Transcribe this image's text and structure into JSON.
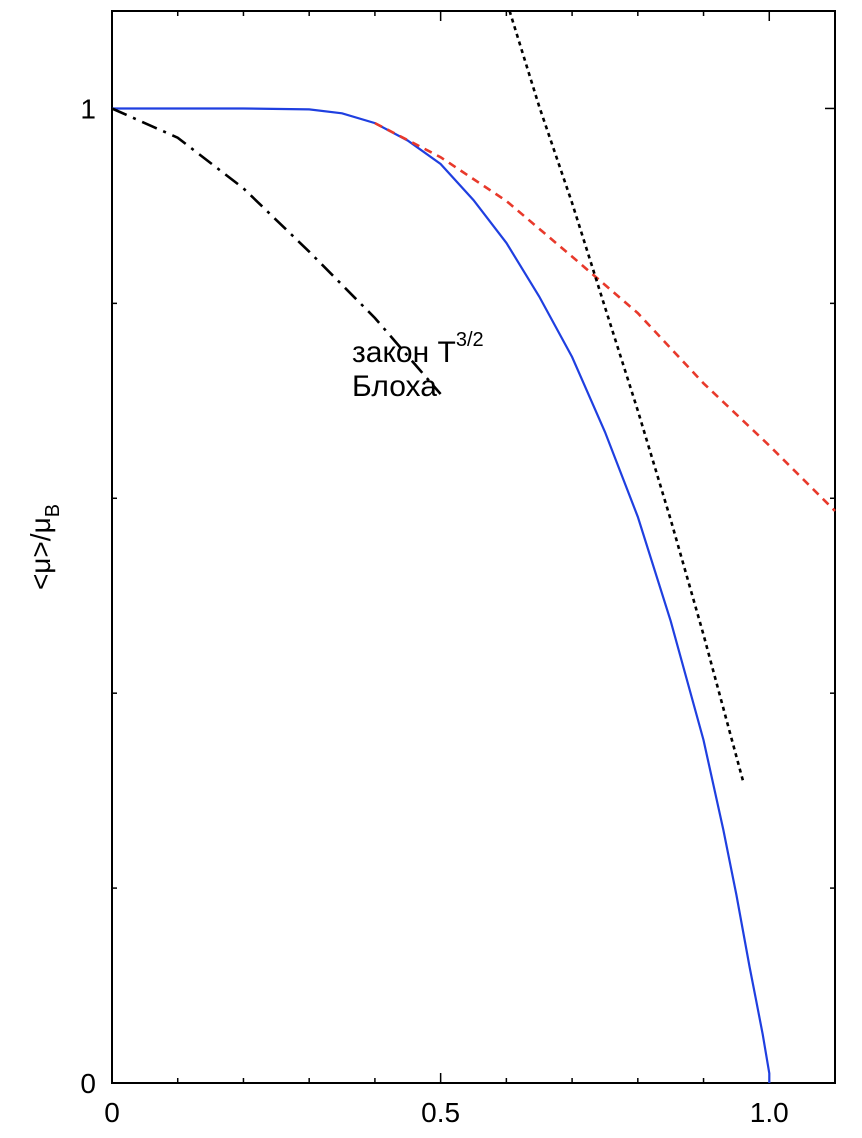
{
  "chart_data": {
    "type": "line",
    "xlim": [
      0,
      1.1
    ],
    "ylim": [
      0,
      1.1
    ],
    "grid": false,
    "legend": "none",
    "x_ticks": [
      {
        "value": 0,
        "label": "0"
      },
      {
        "value": 0.5,
        "label": "0.5"
      },
      {
        "value": 1.0,
        "label": "1.0"
      }
    ],
    "y_ticks": [
      {
        "value": 0,
        "label": "0"
      },
      {
        "value": 1,
        "label": "1"
      }
    ],
    "ylabel": {
      "base": "<μ>/μ",
      "sub": "B"
    },
    "series": [
      {
        "color": "#1f3fe0",
        "style": "solid",
        "x": [
          0,
          0.2,
          0.3,
          0.35,
          0.4,
          0.45,
          0.5,
          0.55,
          0.6,
          0.65,
          0.7,
          0.75,
          0.8,
          0.85,
          0.9,
          0.93,
          0.95,
          0.97,
          0.98,
          0.99,
          0.995,
          1.0,
          1.0
        ],
        "y": [
          1.0,
          1.0,
          0.999,
          0.995,
          0.985,
          0.967,
          0.943,
          0.906,
          0.862,
          0.807,
          0.745,
          0.668,
          0.581,
          0.474,
          0.352,
          0.26,
          0.193,
          0.119,
          0.085,
          0.05,
          0.03,
          0.01,
          0.0
        ]
      },
      {
        "color": "#e8392b",
        "style": "dashed",
        "x": [
          0.4,
          0.5,
          0.6,
          0.7,
          0.8,
          0.9,
          1.0,
          1.1
        ],
        "y": [
          0.985,
          0.95,
          0.905,
          0.848,
          0.79,
          0.718,
          0.654,
          0.587
        ]
      },
      {
        "color": "#000000",
        "style": "dotted",
        "x": [
          0.605,
          0.65,
          0.7,
          0.75,
          0.8,
          0.85,
          0.9,
          0.94,
          0.96
        ],
        "y": [
          1.1,
          1.002,
          0.903,
          0.796,
          0.69,
          0.578,
          0.46,
          0.36,
          0.31
        ]
      },
      {
        "color": "#000000",
        "style": "dashdot",
        "x": [
          0,
          0.1,
          0.2,
          0.3,
          0.4,
          0.5
        ],
        "y": [
          1.0,
          0.97,
          0.918,
          0.853,
          0.785,
          0.707
        ]
      }
    ],
    "annotation": {
      "line1": "закон T",
      "sup": "3/2",
      "line2": "Блоха"
    }
  }
}
